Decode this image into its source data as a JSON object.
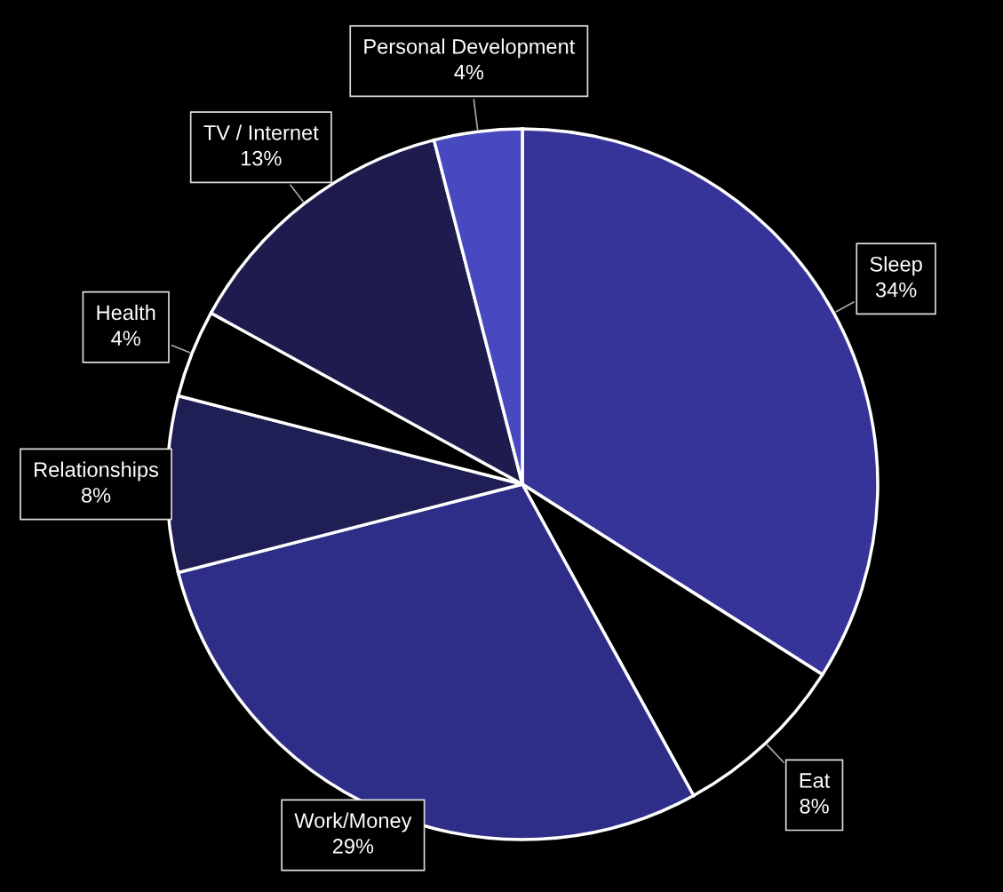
{
  "chart_data": {
    "type": "pie",
    "categories": [
      "Sleep",
      "Eat",
      "Work/Money",
      "Relationships",
      "Health",
      "TV / Internet",
      "Personal Development"
    ],
    "values": [
      34,
      8,
      29,
      8,
      4,
      13,
      4
    ],
    "value_labels": [
      "34%",
      "8%",
      "29%",
      "8%",
      "4%",
      "13%",
      "4%"
    ],
    "colors": [
      "#363498",
      "#000000",
      "#2e2e88",
      "#1f1e55",
      "#000000",
      "#1e1b4f",
      "#4848c0"
    ]
  }
}
